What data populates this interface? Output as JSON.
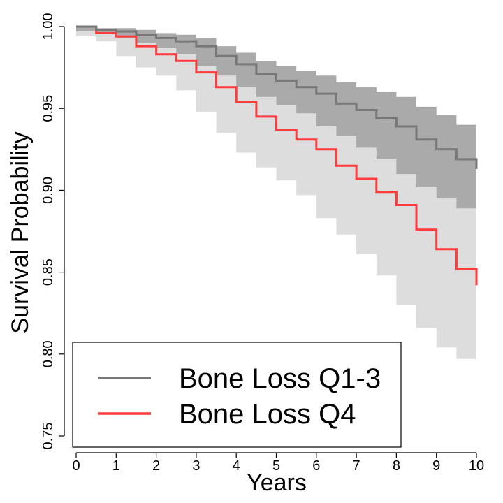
{
  "chart_data": {
    "type": "line",
    "xlabel": "Years",
    "ylabel": "Survival Probability",
    "xlim": [
      0,
      10
    ],
    "ylim": [
      0.75,
      1.0
    ],
    "x_ticks": [
      "0",
      "1",
      "2",
      "3",
      "4",
      "5",
      "6",
      "7",
      "8",
      "9",
      "10"
    ],
    "y_ticks": [
      "0.75",
      "0.80",
      "0.85",
      "0.90",
      "0.95",
      "1.00"
    ],
    "grid": false,
    "legend_position": "bottom-left",
    "series": [
      {
        "name": "Bone Loss Q1-3",
        "color": "#777777",
        "band_color": "#aaaaaa",
        "x": [
          0,
          0.5,
          1,
          1.5,
          2,
          2.5,
          3,
          3.5,
          4,
          4.5,
          5,
          5.5,
          6,
          6.5,
          7,
          7.5,
          8,
          8.5,
          9,
          9.5,
          10
        ],
        "y": [
          1.0,
          0.998,
          0.997,
          0.995,
          0.993,
          0.991,
          0.988,
          0.982,
          0.977,
          0.971,
          0.967,
          0.963,
          0.959,
          0.953,
          0.949,
          0.944,
          0.939,
          0.931,
          0.925,
          0.919,
          0.913
        ],
        "lower": [
          1.0,
          0.997,
          0.996,
          0.993,
          0.99,
          0.987,
          0.983,
          0.976,
          0.97,
          0.963,
          0.957,
          0.952,
          0.947,
          0.939,
          0.933,
          0.926,
          0.919,
          0.91,
          0.902,
          0.895,
          0.889
        ],
        "upper": [
          1.0,
          0.999,
          0.999,
          0.998,
          0.996,
          0.995,
          0.993,
          0.988,
          0.984,
          0.979,
          0.976,
          0.973,
          0.97,
          0.966,
          0.963,
          0.96,
          0.957,
          0.951,
          0.946,
          0.94,
          0.935
        ]
      },
      {
        "name": "Bone Loss Q4",
        "color": "#ff3b3b",
        "band_color": "#dddddd",
        "x": [
          0,
          0.5,
          1,
          1.5,
          2,
          2.5,
          3,
          3.5,
          4,
          4.5,
          5,
          5.5,
          6,
          6.5,
          7,
          7.5,
          8,
          8.5,
          9,
          9.5,
          10
        ],
        "y": [
          1.0,
          0.996,
          0.994,
          0.988,
          0.983,
          0.979,
          0.972,
          0.963,
          0.954,
          0.945,
          0.937,
          0.931,
          0.925,
          0.915,
          0.907,
          0.899,
          0.891,
          0.876,
          0.864,
          0.852,
          0.842
        ],
        "lower": [
          1.0,
          0.994,
          0.991,
          0.982,
          0.975,
          0.97,
          0.961,
          0.948,
          0.935,
          0.923,
          0.914,
          0.906,
          0.897,
          0.883,
          0.873,
          0.861,
          0.848,
          0.83,
          0.816,
          0.804,
          0.797
        ],
        "upper": [
          1.0,
          0.998,
          0.997,
          0.994,
          0.991,
          0.988,
          0.983,
          0.977,
          0.97,
          0.964,
          0.959,
          0.955,
          0.951,
          0.944,
          0.939,
          0.933,
          0.928,
          0.916,
          0.906,
          0.896,
          0.888
        ]
      }
    ]
  }
}
